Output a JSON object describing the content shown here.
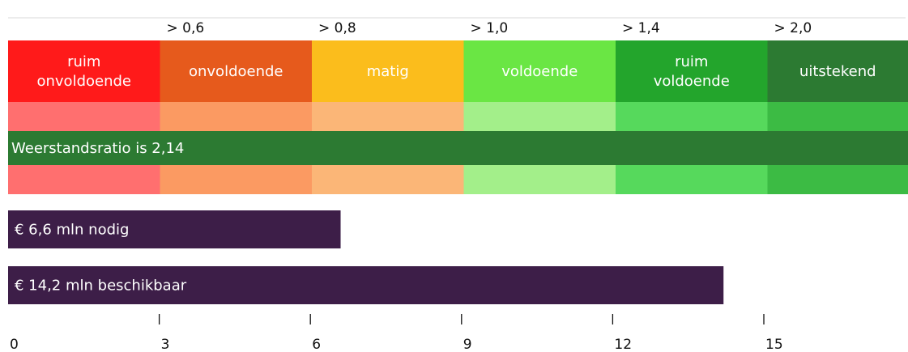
{
  "chart_data": {
    "type": "bar",
    "thresholds": [
      "> 0,6",
      "> 0,8",
      "> 1,0",
      "> 1,4",
      "> 2,0"
    ],
    "categories": [
      {
        "lines": [
          "ruim",
          "onvoldoende"
        ],
        "color": "#ff1a1a",
        "light": "#ff6f6f"
      },
      {
        "lines": [
          "onvoldoende"
        ],
        "color": "#e65a1c",
        "light": "#fb9a62"
      },
      {
        "lines": [
          "matig"
        ],
        "color": "#fbbd1c",
        "light": "#fbb677"
      },
      {
        "lines": [
          "voldoende"
        ],
        "color": "#6ae644",
        "light": "#a3ef8a"
      },
      {
        "lines": [
          "ruim",
          "voldoende"
        ],
        "color": "#23a52c",
        "light": "#56d95c"
      },
      {
        "lines": [
          "uitstekend"
        ],
        "color": "#2c7a32",
        "light": "#3cbb44"
      }
    ],
    "ratio": {
      "label": "Weerstandsratio is 2,14",
      "value": 2.14,
      "color": "#2c7a32"
    },
    "bars": [
      {
        "label": "€ 6,6 mln nodig",
        "value": 6.6
      },
      {
        "label": "€ 14,2 mln beschikbaar",
        "value": 14.2
      }
    ],
    "bar_color": "#3d1e48",
    "xlim": [
      0,
      18
    ],
    "xticks": [
      0,
      3,
      6,
      9,
      12,
      15
    ],
    "xtick_labels": [
      "0",
      "3",
      "6",
      "9",
      "12",
      "15"
    ]
  }
}
